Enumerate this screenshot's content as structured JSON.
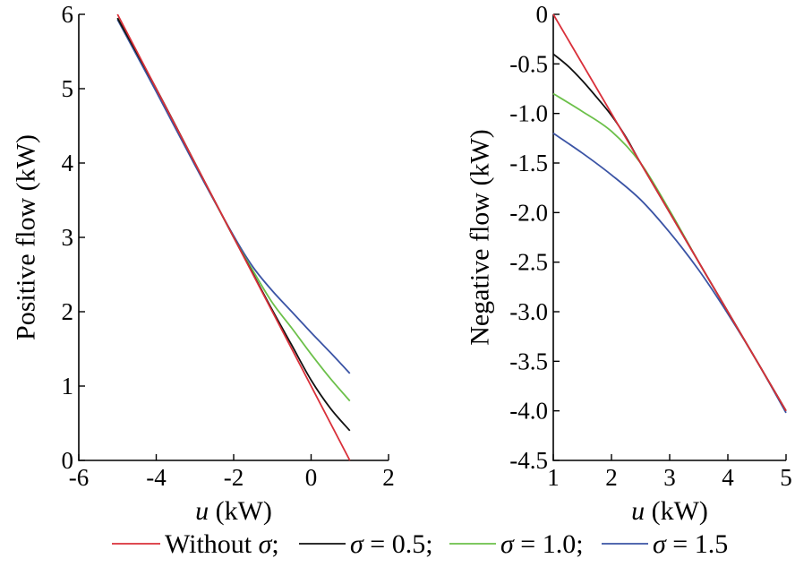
{
  "colors": {
    "without": "#d9303a",
    "s05": "#111111",
    "s10": "#6cc04a",
    "s15": "#3b54a5"
  },
  "legend": [
    {
      "key": "without",
      "label": "Without σ;"
    },
    {
      "key": "s05",
      "label": "σ = 0.5;"
    },
    {
      "key": "s10",
      "label": "σ = 1.0;"
    },
    {
      "key": "s15",
      "label": "σ = 1.5"
    }
  ],
  "chart_data": [
    {
      "type": "line",
      "xlabel_var": "u",
      "xlabel_unit": " (kW)",
      "ylabel": "Positive flow (kW)",
      "xlim": [
        -6,
        2
      ],
      "ylim": [
        0,
        6
      ],
      "xticks": [
        -6,
        -4,
        -2,
        0,
        2
      ],
      "xtick_labels": [
        "-6",
        "-4",
        "-2",
        "0",
        "2"
      ],
      "yticks": [
        0,
        1,
        2,
        3,
        4,
        5,
        6
      ],
      "ytick_labels": [
        "0",
        "1",
        "2",
        "3",
        "4",
        "5",
        "6"
      ],
      "grid": false,
      "series": [
        {
          "key": "without",
          "name": "Without σ",
          "x": [
            -5,
            1
          ],
          "y": [
            6,
            0
          ]
        },
        {
          "key": "s05",
          "name": "σ = 0.5",
          "x": [
            -5,
            -4,
            -3,
            -2,
            -1.5,
            -1,
            -0.5,
            0,
            0.5,
            1
          ],
          "y": [
            5.95,
            5.0,
            4.0,
            3.0,
            2.51,
            2.02,
            1.55,
            1.08,
            0.7,
            0.4
          ]
        },
        {
          "key": "s10",
          "name": "σ = 1.0",
          "x": [
            -5,
            -4,
            -3,
            -2,
            -1.5,
            -1,
            -0.5,
            0,
            0.5,
            1
          ],
          "y": [
            5.95,
            5.0,
            4.0,
            3.0,
            2.55,
            2.12,
            1.78,
            1.43,
            1.1,
            0.8
          ]
        },
        {
          "key": "s15",
          "name": "σ = 1.5",
          "x": [
            -5,
            -4,
            -3,
            -2,
            -1.5,
            -1,
            -0.5,
            0,
            0.5,
            1
          ],
          "y": [
            5.93,
            4.96,
            3.97,
            3.02,
            2.6,
            2.28,
            2.0,
            1.72,
            1.45,
            1.17
          ]
        }
      ]
    },
    {
      "type": "line",
      "xlabel_var": "u",
      "xlabel_unit": " (kW)",
      "ylabel": "Negative flow (kW)",
      "xlim": [
        1,
        5
      ],
      "ylim": [
        -4.5,
        0
      ],
      "xticks": [
        1,
        2,
        3,
        4,
        5
      ],
      "xtick_labels": [
        "1",
        "2",
        "3",
        "4",
        "5"
      ],
      "yticks": [
        0,
        -0.5,
        -1.0,
        -1.5,
        -2.0,
        -2.5,
        -3.0,
        -3.5,
        -4.0,
        -4.5
      ],
      "ytick_labels": [
        "0",
        "-0.5",
        "-1.0",
        "-1.5",
        "-2.0",
        "-2.5",
        "-3.0",
        "-3.5",
        "-4.0",
        "-4.5"
      ],
      "grid": false,
      "series": [
        {
          "key": "without",
          "name": "Without σ",
          "x": [
            1,
            5
          ],
          "y": [
            0,
            -4.0
          ]
        },
        {
          "key": "s05",
          "name": "σ = 0.5",
          "x": [
            1,
            1.25,
            1.5,
            1.75,
            2,
            2.25,
            2.5,
            3,
            4,
            5
          ],
          "y": [
            -0.4,
            -0.52,
            -0.67,
            -0.84,
            -1.02,
            -1.24,
            -1.5,
            -2.0,
            -3.0,
            -4.0
          ]
        },
        {
          "key": "s10",
          "name": "σ = 1.0",
          "x": [
            1,
            1.5,
            2,
            2.5,
            3,
            3.5,
            4,
            4.5,
            5
          ],
          "y": [
            -0.8,
            -0.98,
            -1.18,
            -1.5,
            -1.98,
            -2.5,
            -3.0,
            -3.5,
            -4.0
          ]
        },
        {
          "key": "s15",
          "name": "σ = 1.5",
          "x": [
            1,
            1.5,
            2,
            2.5,
            3,
            3.5,
            4,
            4.5,
            5
          ],
          "y": [
            -1.2,
            -1.4,
            -1.62,
            -1.87,
            -2.2,
            -2.58,
            -3.02,
            -3.5,
            -4.02
          ]
        }
      ]
    }
  ]
}
